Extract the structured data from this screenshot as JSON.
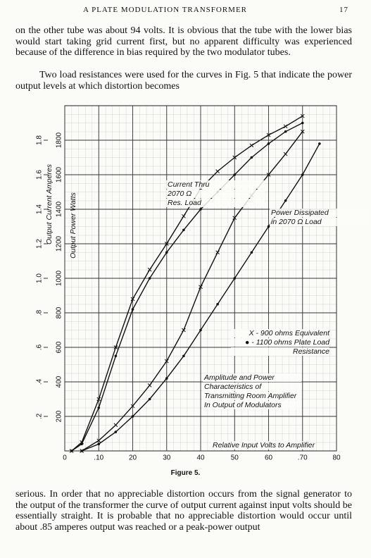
{
  "header": {
    "running_title": "A PLATE MODULATION TRANSFORMER",
    "page_number": "17"
  },
  "paragraphs_before": [
    "on the other tube was about 94 volts. It is obvious that the tube with the lower bias would start taking grid current first, but no apparent difficulty was experienced because of the difference in bias required by the two modulator tubes.",
    "Two load resistances were used for the curves in Fig. 5 that indicate the power output levels at which distortion becomes"
  ],
  "chart_data": {
    "type": "line",
    "y_label": "Output Power Watts",
    "y2_label": "Output Current Amperes",
    "annotations": [
      [
        "Current Thru",
        "2070 Ω",
        "Res. Load"
      ],
      [
        "Power Dissipated",
        "in 2070 Ω Load"
      ],
      [
        "X - 900 ohms Equivalent",
        "● - 1100 ohms Plate Load",
        "Resistance"
      ],
      [
        "Amplitude and Power",
        "Characteristics of",
        "Transmitting Room Amplifier",
        "In Output of Modulators"
      ],
      [
        "Relative Input Volts to Amplifier"
      ]
    ],
    "x": [
      0.02,
      0.05,
      0.1,
      0.15,
      0.2,
      0.25,
      0.3,
      0.35,
      0.4,
      0.45,
      0.5,
      0.55,
      0.6,
      0.65,
      0.7,
      0.75
    ],
    "xlim": [
      0,
      0.8
    ],
    "xticks": [
      0,
      {
        "value": 0.1,
        "label": ".10"
      },
      {
        "value": 0.2,
        "label": "20"
      },
      {
        "value": 0.3,
        "label": "30"
      },
      {
        "value": 0.4,
        "label": "40"
      },
      {
        "value": 0.5,
        "label": "50"
      },
      {
        "value": 0.6,
        "label": "60"
      },
      {
        "value": 0.7,
        "label": ".70"
      },
      {
        "value": 0.8,
        "label": "80"
      }
    ],
    "ylim": [
      0,
      2000
    ],
    "yticks": [
      200,
      400,
      600,
      800,
      1000,
      1200,
      1400,
      1600,
      1800
    ],
    "y2lim": [
      0,
      2.0
    ],
    "y2ticks": [
      {
        "value": 0.2,
        "label": ".2"
      },
      {
        "value": 0.4,
        "label": ".4"
      },
      {
        "value": 0.6,
        "label": ".6"
      },
      {
        "value": 0.8,
        "label": ".8"
      },
      {
        "value": 1.0,
        "label": "1.0"
      },
      {
        "value": 1.2,
        "label": "1.2"
      },
      {
        "value": 1.4,
        "label": "1.4"
      },
      {
        "value": 1.6,
        "label": "1.6"
      },
      {
        "value": 1.8,
        "label": "1.8"
      }
    ],
    "grid": true,
    "series": [
      {
        "color": "#111111",
        "marker": "x",
        "axis": "y2",
        "values": [
          0,
          0.05,
          0.3,
          0.6,
          0.88,
          1.05,
          1.2,
          1.36,
          1.52,
          1.62,
          1.7,
          1.77,
          1.83,
          1.88,
          1.94,
          null
        ]
      },
      {
        "color": "#111111",
        "marker": "dot",
        "axis": "y2",
        "values": [
          0,
          0.04,
          0.25,
          0.55,
          0.82,
          1.0,
          1.15,
          1.28,
          1.4,
          1.5,
          1.6,
          1.7,
          1.78,
          1.85,
          1.9,
          null
        ]
      },
      {
        "color": "#111111",
        "marker": "x",
        "values": [
          null,
          0,
          60,
          150,
          260,
          380,
          520,
          700,
          950,
          1150,
          1350,
          1480,
          1600,
          1720,
          1850,
          null
        ]
      },
      {
        "color": "#111111",
        "marker": "dot",
        "values": [
          null,
          0,
          40,
          110,
          200,
          300,
          420,
          550,
          700,
          850,
          1000,
          1150,
          1300,
          1450,
          1600,
          1780
        ]
      }
    ]
  },
  "caption": "Figure 5.",
  "paragraphs_after": [
    "serious. In order that no appreciable distortion occurs from the signal generator to the output of the transformer the curve of output current against input volts should be essentially straight. It is probable that no appreciable distortion would occur until about .85 amperes output was reached or a peak-power output"
  ]
}
